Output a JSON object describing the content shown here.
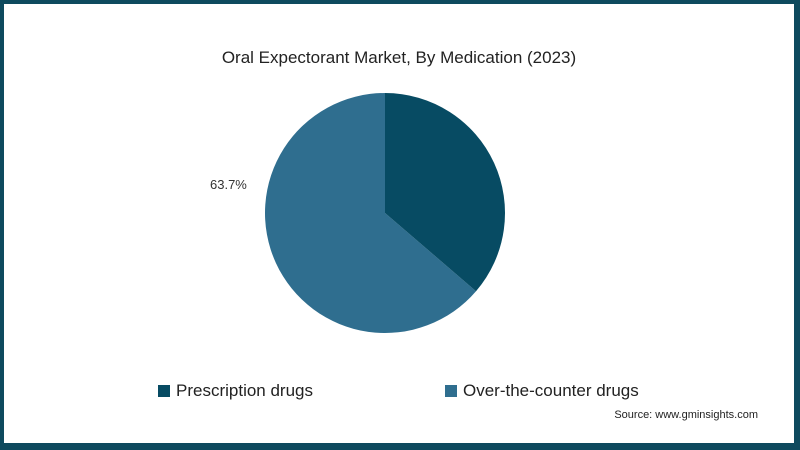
{
  "chart_data": {
    "type": "pie",
    "title": "Oral Expectorant Market, By Medication (2023)",
    "categories": [
      "Prescription drugs",
      "Over-the-counter drugs"
    ],
    "values": [
      36.3,
      63.7
    ],
    "colors": [
      "#074b63",
      "#2f6e8f"
    ],
    "data_labels": [
      "",
      "63.7%"
    ],
    "start_angle_deg": 0,
    "direction": "clockwise",
    "legend_position": "bottom",
    "source": "Source: www.gminsights.com"
  },
  "title": "Oral Expectorant Market, By Medication (2023)",
  "labels": {
    "otc_pct": "63.7%"
  },
  "legend": [
    {
      "label": "Prescription drugs",
      "color": "#074b63"
    },
    {
      "label": "Over-the-counter drugs",
      "color": "#2f6e8f"
    }
  ],
  "source": "Source: www.gminsights.com",
  "colors": {
    "border": "#0e4a5e",
    "background": "#ffffff"
  }
}
